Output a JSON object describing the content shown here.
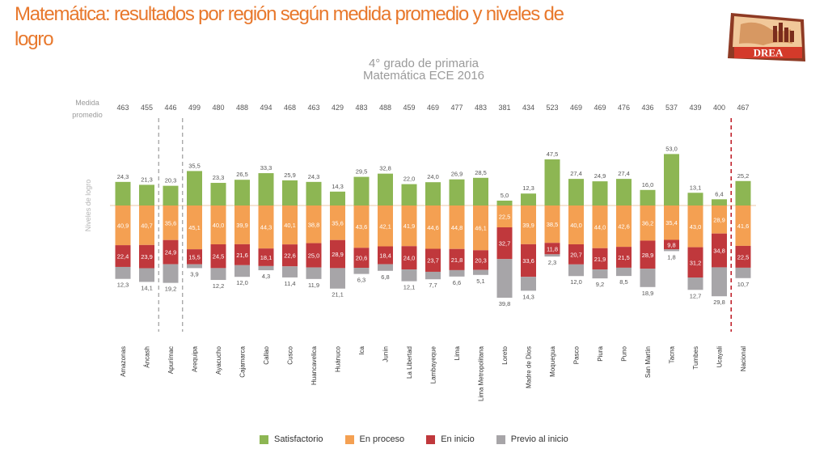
{
  "slide": {
    "title": "Matemática: resultados por región según medida promedio  y niveles de  logro",
    "logo_text": "DREA"
  },
  "colors": {
    "satisfactorio": "#8db653",
    "en_proceso": "#f4a052",
    "en_inicio": "#c0383c",
    "previo_inicio": "#a7a5a8",
    "divider_dashed": "#9b9b9b",
    "divider_national": "#c0202a",
    "title": "#e8782c"
  },
  "chart_data": {
    "type": "bar",
    "stacked": true,
    "diverging": true,
    "title": "4° grado de primaria",
    "subtitle": "Matemática ECE 2016",
    "row_label_top_line1": "Medida",
    "row_label_top_line2": "promedio",
    "ylabel": "Niveles de logro",
    "categories": [
      "Amazonas",
      "Áncash",
      "Apurímac",
      "Arequipa",
      "Ayacucho",
      "Cajamarca",
      "Callao",
      "Cusco",
      "Huancavelica",
      "Huánuco",
      "Ica",
      "Junín",
      "La Libertad",
      "Lambayeque",
      "Lima",
      "Lima Metropolitana",
      "Loreto",
      "Madre de Dios",
      "Moquegua",
      "Pasco",
      "Piura",
      "Puno",
      "San Martín",
      "Tacna",
      "Tumbes",
      "Ucayali",
      "Nacional"
    ],
    "medida_promedio": [
      "463",
      "455",
      "446",
      "499",
      "480",
      "488",
      "494",
      "468",
      "463",
      "429",
      "483",
      "488",
      "459",
      "469",
      "477",
      "483",
      "381",
      "434",
      "523",
      "469",
      "469",
      "476",
      "436",
      "537",
      "439",
      "400",
      "467"
    ],
    "series": [
      {
        "name": "Satisfactorio",
        "values": [
          "24,3",
          "21,3",
          "20,3",
          "35,5",
          "23,3",
          "26,5",
          "33,3",
          "25,9",
          "24,3",
          "14,3",
          "29,5",
          "32,8",
          "22,0",
          "24,0",
          "26,9",
          "28,5",
          "5,0",
          "12,3",
          "47,5",
          "27,4",
          "24,9",
          "27,4",
          "16,0",
          "53,0",
          "13,1",
          "6,4",
          "25,2"
        ]
      },
      {
        "name": "En proceso",
        "values": [
          "40,9",
          "40,7",
          "35,6",
          "45,1",
          "40,0",
          "39,9",
          "44,3",
          "40,1",
          "38,8",
          "35,6",
          "43,6",
          "42,1",
          "41,9",
          "44,6",
          "44,8",
          "46,1",
          "22,5",
          "39,9",
          "38,5",
          "40,0",
          "44,0",
          "42,6",
          "36,2",
          "35,4",
          "43,0",
          "28,9",
          "41,6"
        ]
      },
      {
        "name": "En inicio",
        "values": [
          "22,4",
          "23,9",
          "24,9",
          "15,5",
          "24,5",
          "21,6",
          "18,1",
          "22,6",
          "25,0",
          "28,9",
          "20,6",
          "18,4",
          "24,0",
          "23,7",
          "21,8",
          "20,3",
          "32,7",
          "33,6",
          "11,8",
          "20,7",
          "21,9",
          "21,5",
          "28,9",
          "9,8",
          "31,2",
          "34,8",
          "22,5"
        ]
      },
      {
        "name": "Previo al inicio",
        "values": [
          "12,3",
          "14,1",
          "19,2",
          "3,9",
          "12,2",
          "12,0",
          "4,3",
          "11,4",
          "11,9",
          "21,1",
          "6,3",
          "6,8",
          "12,1",
          "7,7",
          "6,6",
          "5,1",
          "39,8",
          "14,3",
          "2,3",
          "12,0",
          "9,2",
          "8,5",
          "18,9",
          "1,8",
          "12,7",
          "29,8",
          "10,7"
        ]
      }
    ],
    "dashed_separators_around": [
      "Apurímac"
    ],
    "national_separator_before": "Nacional"
  },
  "legend": [
    {
      "label": "Satisfactorio",
      "color": "#8db653"
    },
    {
      "label": "En proceso",
      "color": "#f4a052"
    },
    {
      "label": "En inicio",
      "color": "#c0383c"
    },
    {
      "label": "Previo al inicio",
      "color": "#a7a5a8"
    }
  ]
}
